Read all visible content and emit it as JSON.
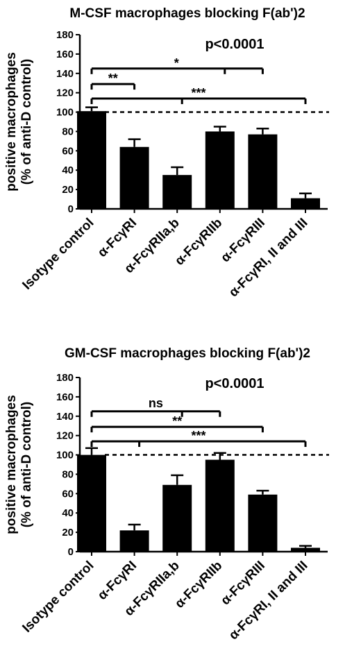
{
  "chart_data": [
    {
      "type": "bar",
      "title": "M-CSF macrophages blocking F(ab')2",
      "ylabel_lines": [
        "positive macrophages",
        "(% of anti-D control)"
      ],
      "ylim": [
        0,
        180
      ],
      "yticks": [
        0,
        20,
        40,
        60,
        80,
        100,
        120,
        140,
        160,
        180
      ],
      "reference_line": 100,
      "categories": [
        "Isotype control",
        "α-FcγRI",
        "α-FcγRIIa,b",
        "α-FcγRIIb",
        "α-FcγRIII",
        "α-FcγRI, II and III"
      ],
      "values": [
        101,
        64,
        35,
        80,
        77,
        11
      ],
      "errors": [
        4,
        8,
        8,
        5,
        6,
        5
      ],
      "p_value": "p<0.0001",
      "comparisons": [
        {
          "label": "*",
          "from": 0,
          "to": 4,
          "y": 145,
          "drop": [
            3
          ]
        },
        {
          "label": "**",
          "from": 0,
          "to": 1,
          "y": 129,
          "drop": []
        },
        {
          "label": "***",
          "from": 0,
          "to": 5,
          "y": 114,
          "drop": [
            2
          ]
        }
      ]
    },
    {
      "type": "bar",
      "title": "GM-CSF macrophages blocking F(ab')2",
      "ylabel_lines": [
        "positive macrophages",
        "(% of anti-D control)"
      ],
      "ylim": [
        0,
        180
      ],
      "yticks": [
        0,
        20,
        40,
        60,
        80,
        100,
        120,
        140,
        160,
        180
      ],
      "reference_line": 100,
      "categories": [
        "Isotype control",
        "α-FcγRI",
        "α-FcγRIIa,b",
        "α-FcγRIIb",
        "α-FcγRIII",
        "α-FcγRI, II and III"
      ],
      "values": [
        100,
        22,
        69,
        95,
        59,
        4
      ],
      "errors": [
        7,
        6,
        10,
        7,
        4,
        2
      ],
      "p_value": "p<0.0001",
      "comparisons": [
        {
          "label": "ns",
          "from": 0,
          "to": 3,
          "y": 145,
          "drop": [
            2
          ]
        },
        {
          "label": "**",
          "from": 0,
          "to": 4,
          "y": 129,
          "drop": []
        },
        {
          "label": "***",
          "from": 0,
          "to": 5,
          "y": 114,
          "drop": [
            1
          ]
        }
      ]
    }
  ]
}
